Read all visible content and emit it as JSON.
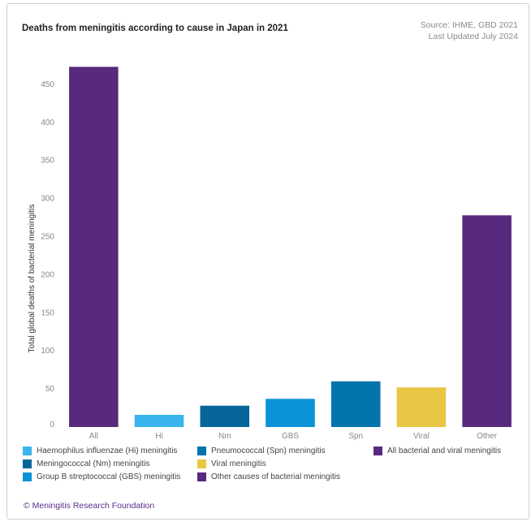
{
  "header": {
    "title": "Deaths from meningitis according to cause in Japan in 2021",
    "source_line1": "Source: IHME, GBD 2021",
    "source_line2": "Last Updated July 2024"
  },
  "footer": {
    "text": "© Meningitis Research Foundation"
  },
  "chart_data": {
    "type": "bar",
    "title": "Deaths from meningitis according to cause in Japan in 2021",
    "ylabel": "Total global deaths of bacterial meningitis",
    "xlabel": "",
    "ylim": [
      0,
      475
    ],
    "yticks": [
      0,
      50,
      100,
      150,
      200,
      250,
      300,
      350,
      400,
      450
    ],
    "categories": [
      "All",
      "Hi",
      "Nm",
      "GBS",
      "Spn",
      "Viral",
      "Other"
    ],
    "values": [
      473,
      16,
      28,
      37,
      60,
      52,
      278
    ],
    "colors": [
      "#572a7e",
      "#3ab4ec",
      "#07659a",
      "#0a93d6",
      "#0474ad",
      "#e9c544",
      "#572a7e"
    ],
    "grid": false,
    "legend_placement": "bottom"
  },
  "legend": [
    {
      "label": "Haemophilus influenzae (Hi) meningitis",
      "color": "#3ab4ec"
    },
    {
      "label": "Pneumococcal (Spn) meningitis",
      "color": "#0474ad"
    },
    {
      "label": "All bacterial and viral meningitis",
      "color": "#572a7e"
    },
    {
      "label": "Meningococcal (Nm) meningitis",
      "color": "#07659a"
    },
    {
      "label": "Viral meningitis",
      "color": "#e9c544"
    },
    {
      "label": "Group B streptococcal (GBS) meningitis",
      "color": "#0a93d6"
    },
    {
      "label": "Other causes of bacterial meningitis",
      "color": "#572a7e"
    }
  ]
}
